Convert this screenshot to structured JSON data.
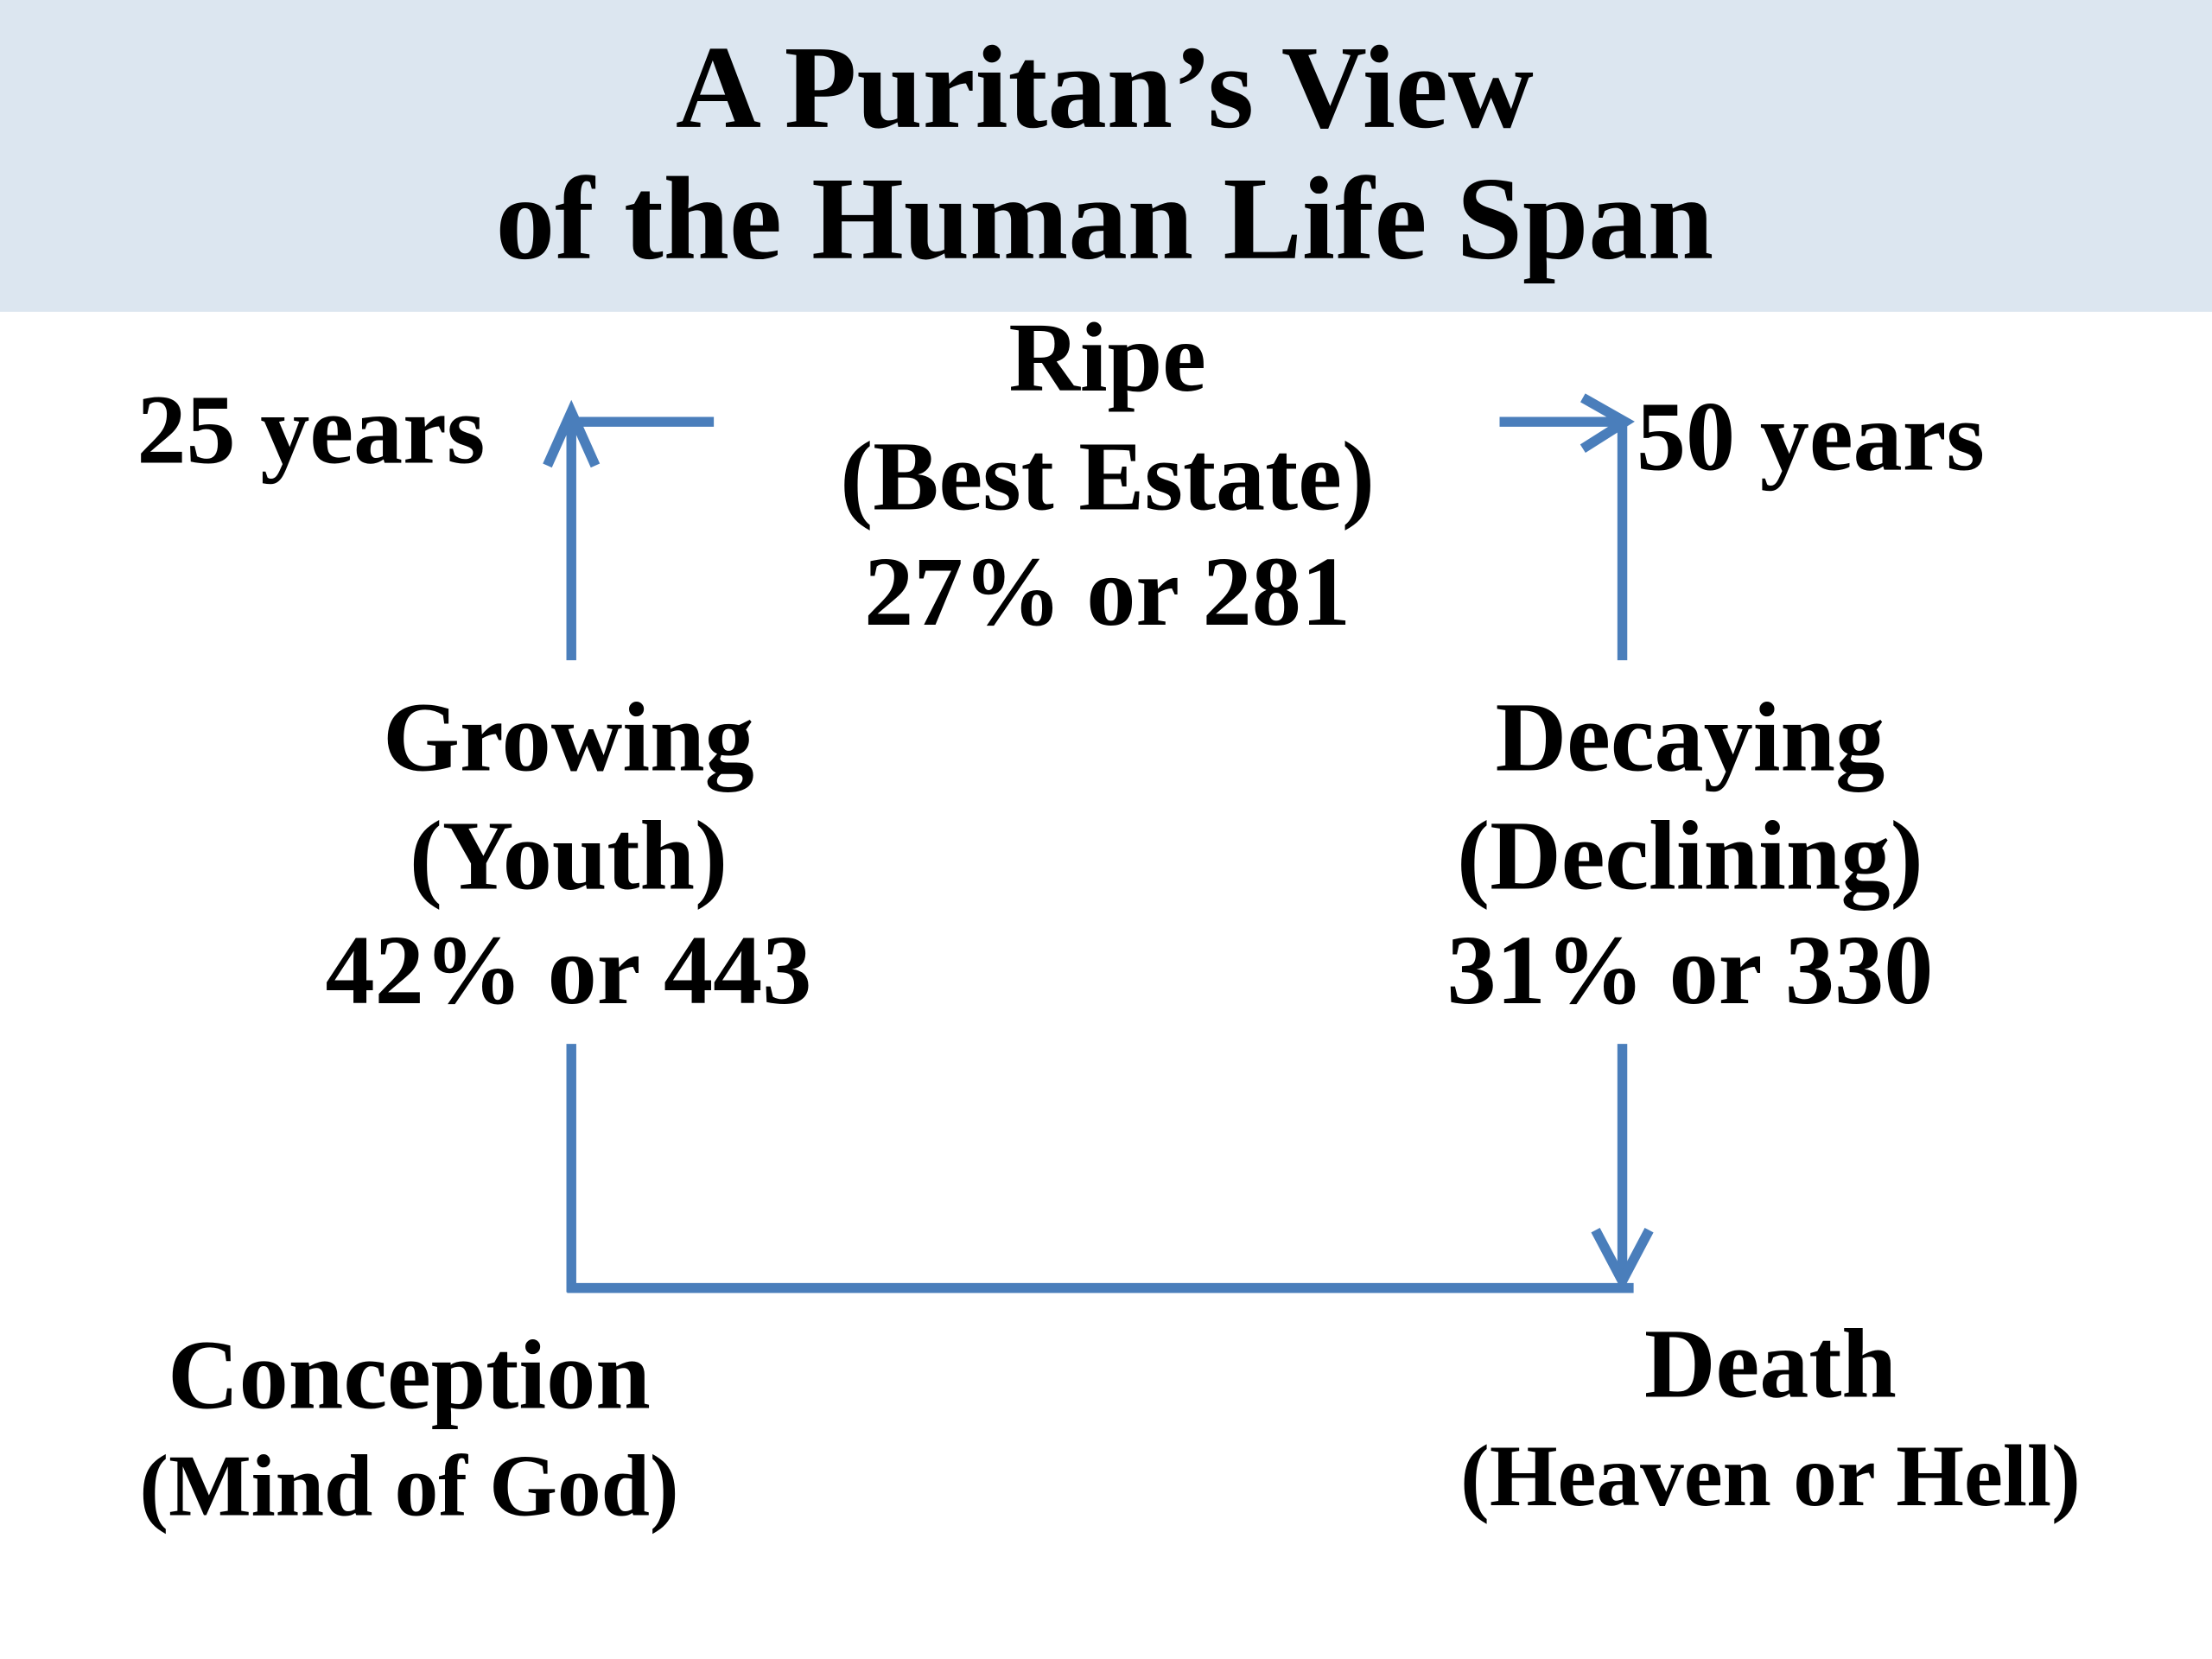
{
  "header": {
    "title_line1": "A Puritan’s View",
    "title_line2": "of the Human Life Span",
    "background": "#dce6f0"
  },
  "arrow_color": "#4a7ebb",
  "stages": {
    "ripe": {
      "name": "Ripe",
      "subtitle": "(Best Estate)",
      "share": "27% or 281"
    },
    "growing": {
      "name": "Growing",
      "subtitle": "(Youth)",
      "share": "42% or 443"
    },
    "decaying": {
      "name": "Decaying",
      "subtitle": "(Declining)",
      "share": "31% or 330"
    },
    "conception": {
      "name": "Conception",
      "subtitle": "(Mind of God)"
    },
    "death": {
      "name": "Death",
      "subtitle": "(Heaven or Hell)"
    }
  },
  "milestones": {
    "left": "25 years",
    "right": "50 years"
  }
}
